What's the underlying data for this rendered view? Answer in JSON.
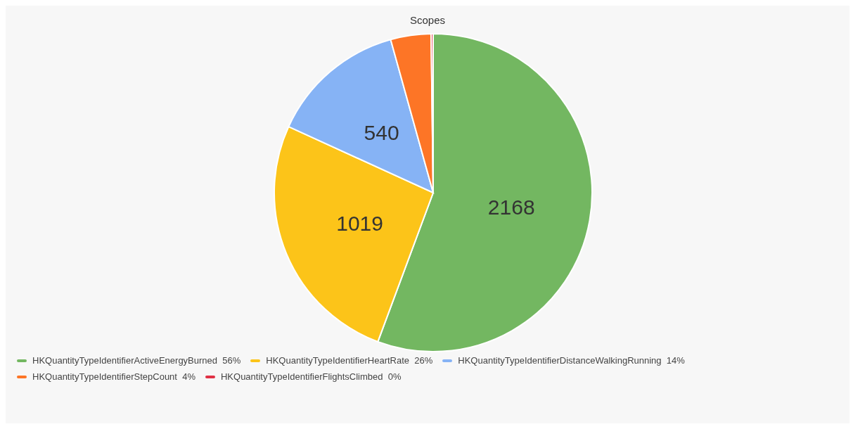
{
  "chart_data": {
    "type": "pie",
    "title": "Scopes",
    "categories": [
      "HKQuantityTypeIdentifierActiveEnergyBurned  56%",
      "HKQuantityTypeIdentifierHeartRate  26%",
      "HKQuantityTypeIdentifierDistanceWalkingRunning  14%",
      "HKQuantityTypeIdentifierStepCount  4%",
      "HKQuantityTypeIdentifierFlightsClimbed  0%"
    ],
    "values": [
      2168,
      1019,
      540,
      160,
      8
    ],
    "colors": [
      "#73b761",
      "#fcc419",
      "#86b3f5",
      "#fd7526",
      "#e03145"
    ],
    "value_labels": [
      "2168",
      "1019",
      "540",
      null,
      null
    ],
    "legend": "bottom"
  }
}
